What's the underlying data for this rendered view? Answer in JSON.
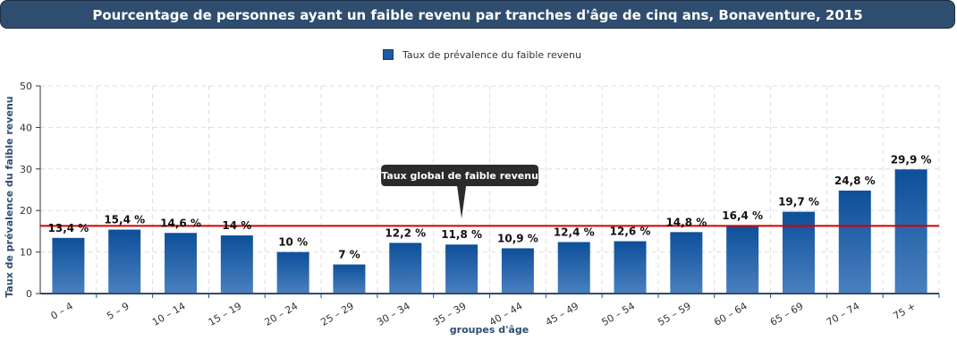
{
  "header": {
    "title": "Pourcentage de personnes ayant un faible revenu par tranches d'âge de cinq ans, Bonaventure, 2015"
  },
  "legend": {
    "label": "Taux de prévalence du faible revenu"
  },
  "reference_line": {
    "label": "Taux global de faible revenu",
    "value": 16.3,
    "color": "#d40000"
  },
  "colors": {
    "bar_top": "#0d4f9a",
    "bar_bottom": "#4a80bf"
  },
  "chart_data": {
    "type": "bar",
    "title": "Pourcentage de personnes ayant un faible revenu par tranches d'âge de cinq ans, Bonaventure, 2015",
    "xlabel": "groupes d'âge",
    "ylabel": "Taux de prévalence du faible revenu",
    "ylim": [
      0,
      50
    ],
    "yticks": [
      0,
      10,
      20,
      30,
      40,
      50
    ],
    "grid": true,
    "legend_position": "top-center",
    "categories": [
      "0 – 4",
      "5 – 9",
      "10 – 14",
      "15 – 19",
      "20 – 24",
      "25 – 29",
      "30 – 34",
      "35 – 39",
      "40 – 44",
      "45 – 49",
      "50 – 54",
      "55 – 59",
      "60 – 64",
      "65 – 69",
      "70 – 74",
      "75 +"
    ],
    "series": [
      {
        "name": "Taux de prévalence du faible revenu",
        "values": [
          13.4,
          15.4,
          14.6,
          14,
          10,
          7,
          12.2,
          11.8,
          10.9,
          12.4,
          12.6,
          14.8,
          16.4,
          19.7,
          24.8,
          29.9
        ],
        "labels": [
          "13,4 %",
          "15,4 %",
          "14,6 %",
          "14 %",
          "10 %",
          "7 %",
          "12,2 %",
          "11,8 %",
          "10,9 %",
          "12,4 %",
          "12,6 %",
          "14,8 %",
          "16,4 %",
          "19,7 %",
          "24,8 %",
          "29,9 %"
        ]
      }
    ]
  }
}
